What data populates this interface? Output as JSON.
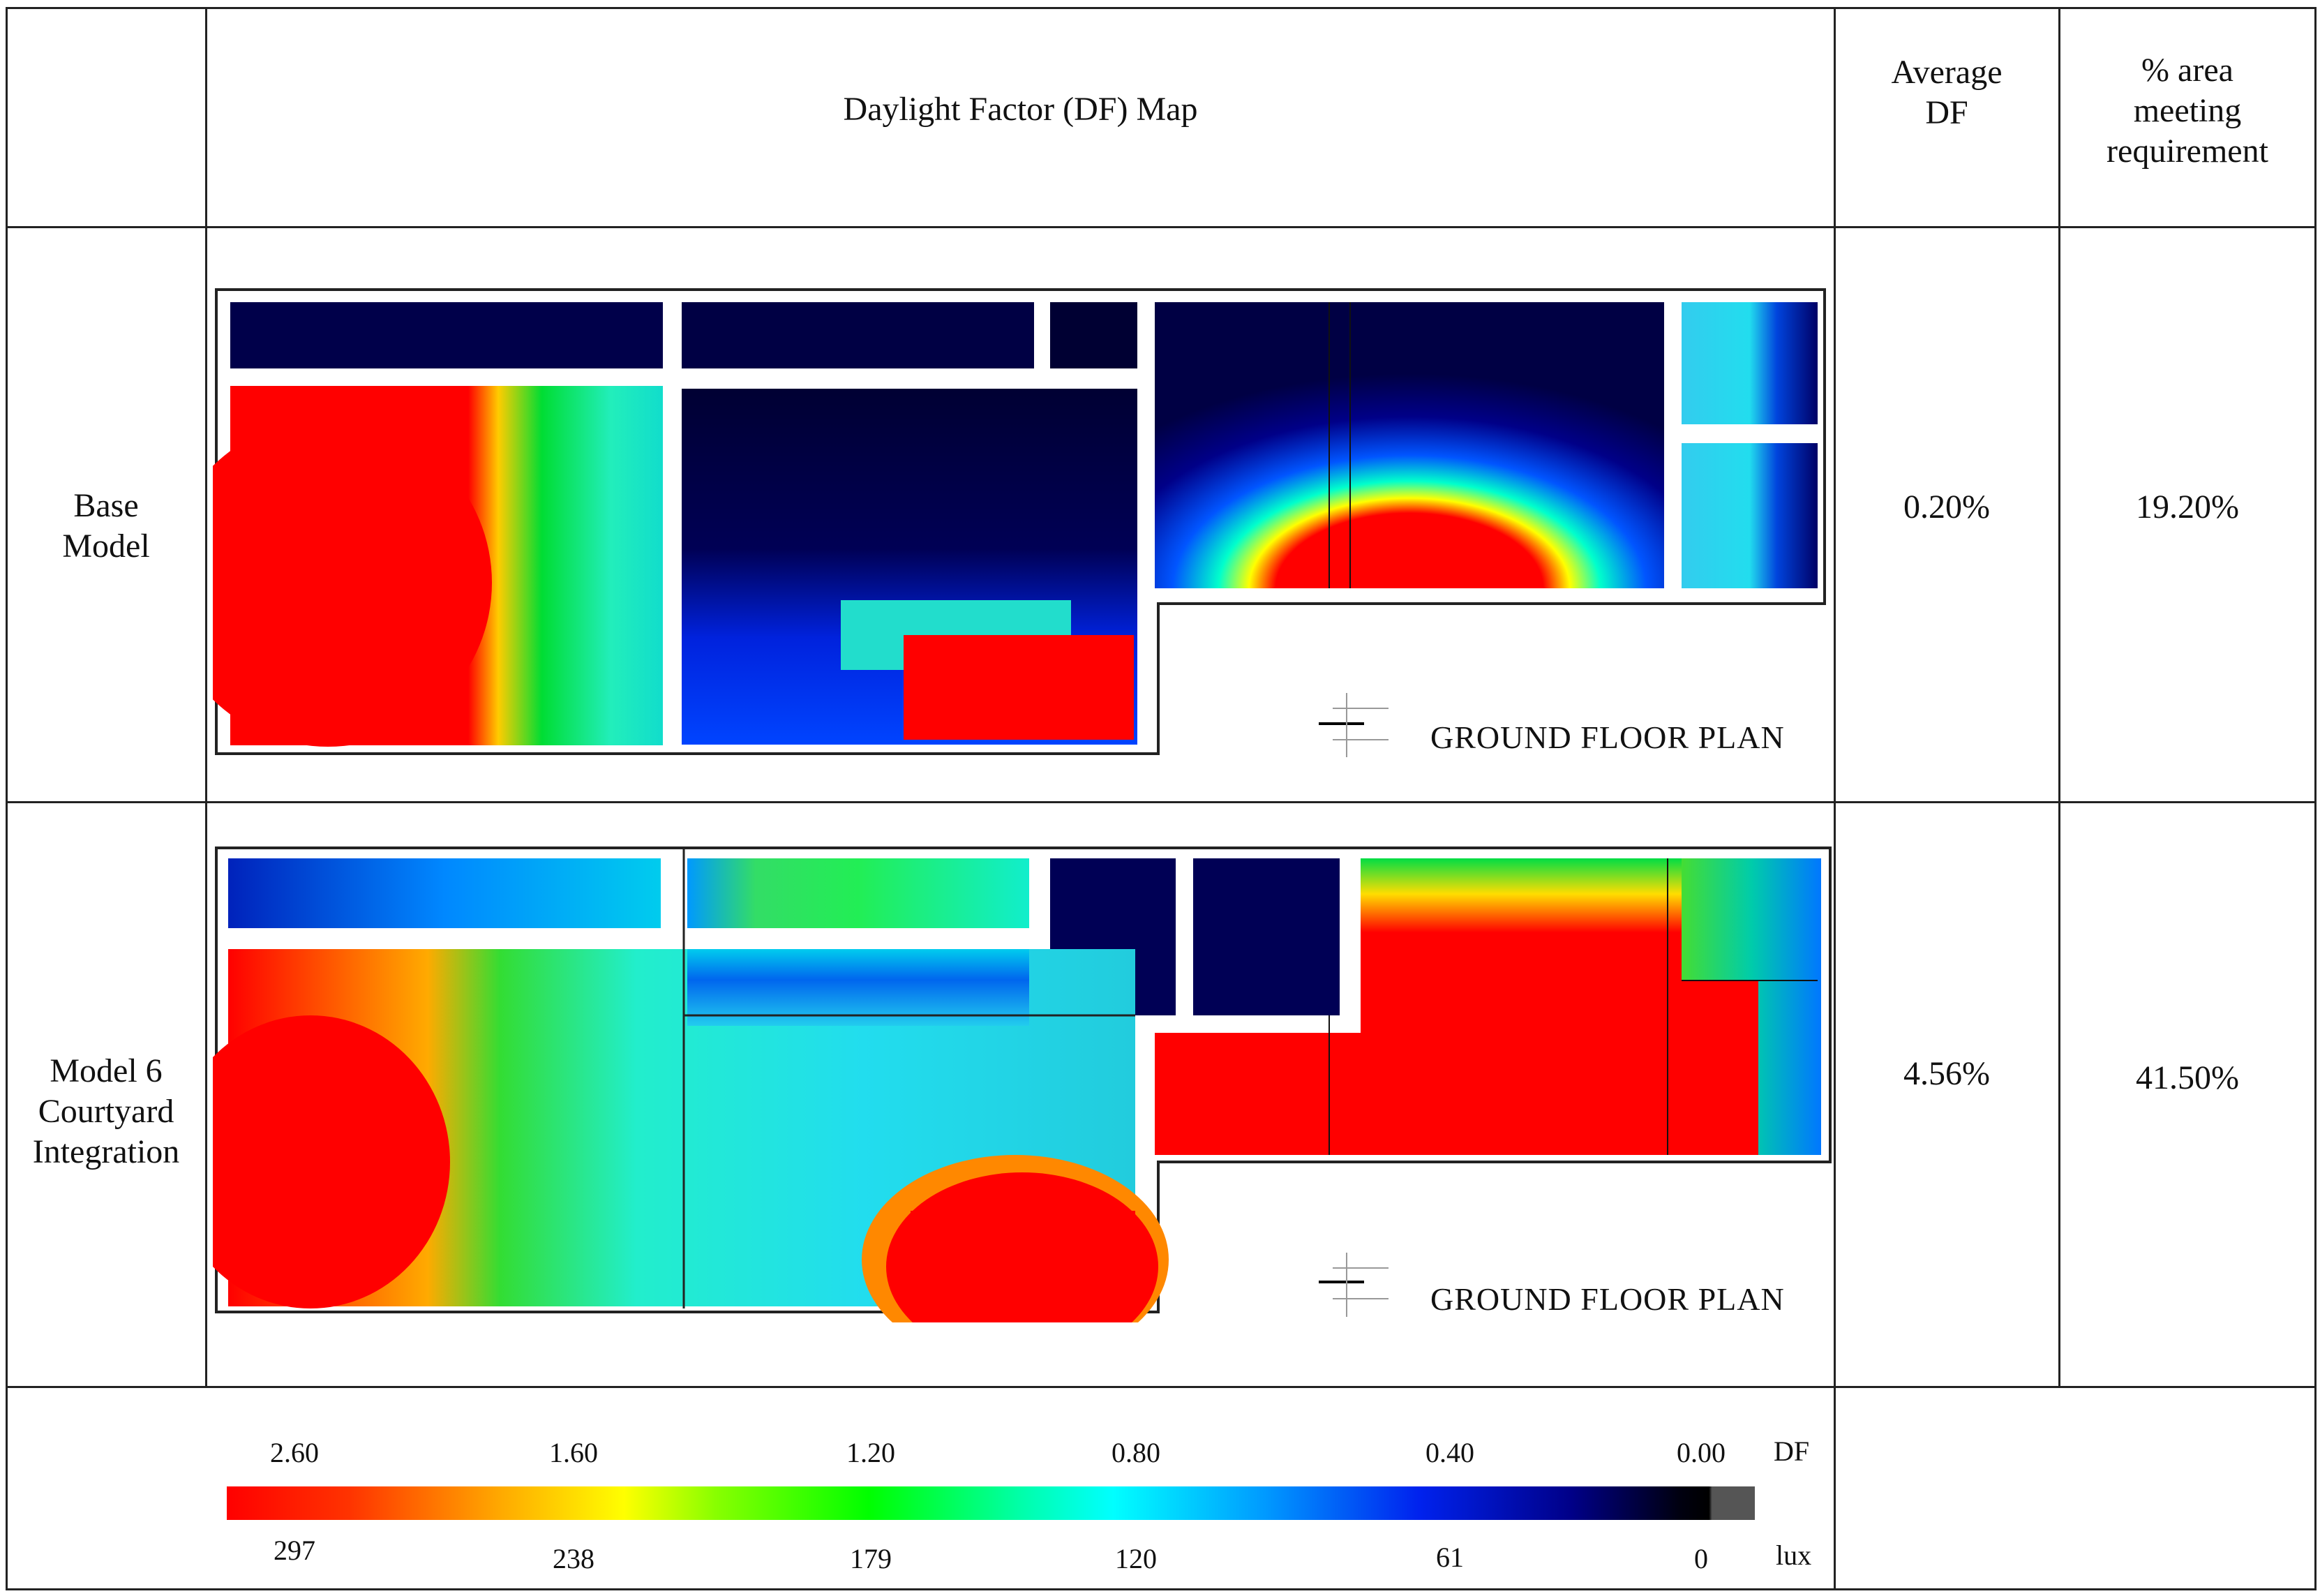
{
  "table": {
    "header": {
      "map": "Daylight Factor (DF) Map",
      "average_df": [
        "Average",
        "DF"
      ],
      "area_meeting": [
        "% area",
        "meeting",
        "requirement"
      ]
    },
    "rows": [
      {
        "label": [
          "Base",
          "Model"
        ],
        "plan_label": "GROUND FLOOR PLAN",
        "average_df": "0.20%",
        "area_meeting": "19.20%"
      },
      {
        "label": [
          "Model 6",
          "Courtyard",
          "Integration"
        ],
        "plan_label": "GROUND FLOOR PLAN",
        "average_df": "4.56%",
        "area_meeting": "41.50%"
      }
    ]
  },
  "legend": {
    "df_values": [
      "2.60",
      "1.60",
      "1.20",
      "0.80",
      "0.40",
      "0.00"
    ],
    "df_unit": "DF",
    "lux_values": [
      "297",
      "238",
      "179",
      "120",
      "61",
      "0"
    ],
    "lux_unit": "lux",
    "colors": [
      "#ff0000",
      "#ffaa00",
      "#ffff00",
      "#00ff00",
      "#00ffff",
      "#0066ff",
      "#0000cc",
      "#000033",
      "#000000",
      "#555555"
    ]
  }
}
